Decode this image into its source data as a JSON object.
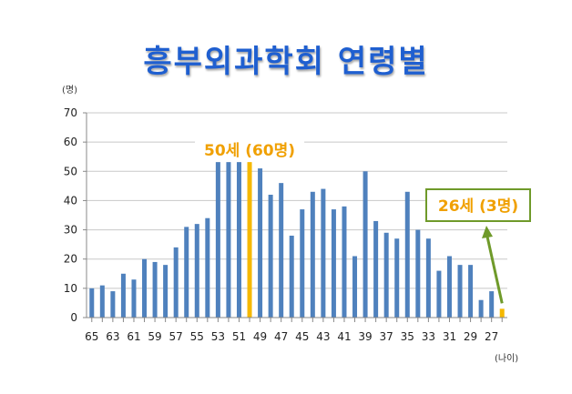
{
  "chart_data": {
    "type": "bar",
    "title": "흥부외과학회 연령별",
    "ylabel_unit": "(명)",
    "xlabel_unit": "(나이)",
    "ylim": [
      0,
      70
    ],
    "yticks": [
      0,
      10,
      20,
      30,
      40,
      50,
      60,
      70
    ],
    "grid": true,
    "x": [
      65,
      64,
      63,
      62,
      61,
      60,
      59,
      58,
      57,
      56,
      55,
      54,
      53,
      52,
      51,
      50,
      49,
      48,
      47,
      46,
      45,
      44,
      43,
      42,
      41,
      40,
      39,
      38,
      37,
      36,
      35,
      34,
      33,
      32,
      31,
      30,
      29,
      28,
      27,
      26
    ],
    "x_tick_labels": [
      "65",
      "63",
      "61",
      "59",
      "57",
      "55",
      "53",
      "51",
      "49",
      "47",
      "45",
      "43",
      "41",
      "39",
      "37",
      "35",
      "33",
      "31",
      "29",
      "27"
    ],
    "values": [
      10,
      11,
      9,
      15,
      13,
      20,
      19,
      18,
      24,
      31,
      32,
      34,
      55,
      56,
      54,
      60,
      51,
      42,
      46,
      28,
      37,
      43,
      44,
      37,
      38,
      21,
      50,
      33,
      29,
      27,
      43,
      30,
      27,
      16,
      21,
      18,
      18,
      6,
      9,
      3
    ],
    "highlight": [
      50,
      26
    ],
    "colors": {
      "bar": "#4f81bd",
      "highlight": "#f5b800",
      "title": "#1f5fd0",
      "callout": "#f0a000",
      "arrow": "#6f9a2a"
    },
    "annotations": [
      {
        "text": "50세 (60명)",
        "target_age": 50
      },
      {
        "text": "26세 (3명)",
        "target_age": 26
      }
    ]
  }
}
